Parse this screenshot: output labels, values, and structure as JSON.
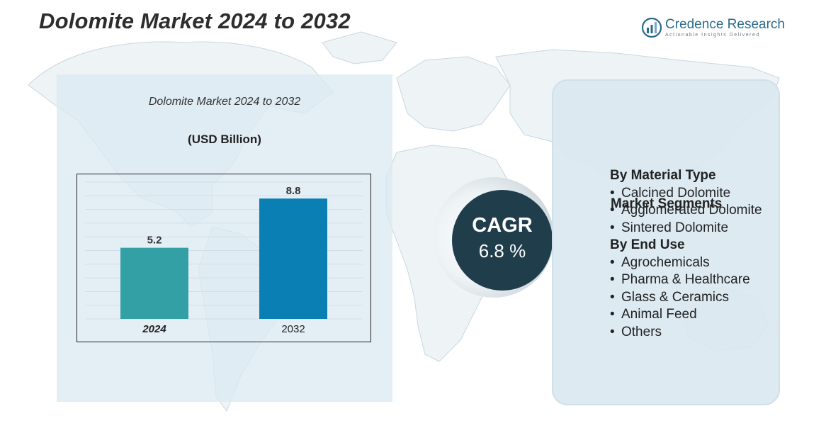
{
  "page": {
    "title": "Dolomite Market 2024 to 2032",
    "logo": {
      "name": "Credence Research",
      "tagline": "Actionable Insights Delivered"
    }
  },
  "chart_data": {
    "type": "bar",
    "title": "Dolomite Market 2024 to 2032",
    "ylabel": "(USD Billion)",
    "xlabel": "",
    "categories": [
      "2024",
      "2032"
    ],
    "values": [
      5.2,
      8.8
    ],
    "colors": [
      "#33a0a6",
      "#0a7fb4"
    ],
    "ylim": [
      0,
      10
    ],
    "grid": true
  },
  "cagr": {
    "label": "CAGR",
    "value": "6.8 %"
  },
  "segments": {
    "heading": "Market Segments",
    "groups": [
      {
        "title": "By Material Type",
        "items": [
          "Calcined Dolomite",
          "Agglomerated Dolomite",
          "Sintered Dolomite"
        ]
      },
      {
        "title": "By End Use",
        "items": [
          "Agrochemicals",
          "Pharma & Healthcare",
          "Glass & Ceramics",
          "Animal Feed",
          "Others"
        ]
      }
    ]
  }
}
